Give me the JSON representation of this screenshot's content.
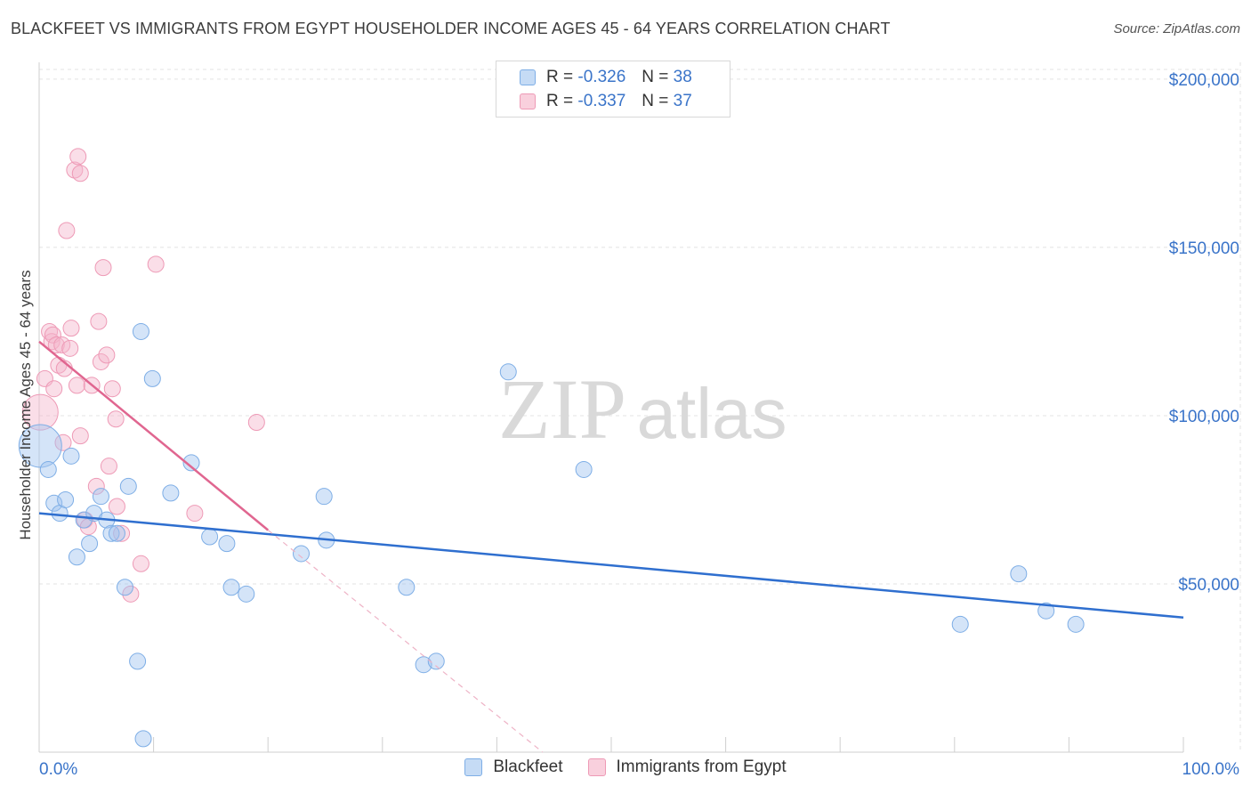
{
  "header": {
    "title": "BLACKFEET VS IMMIGRANTS FROM EGYPT HOUSEHOLDER INCOME AGES 45 - 64 YEARS CORRELATION CHART",
    "source": "Source: ZipAtlas.com"
  },
  "watermark": {
    "zip": "ZIP",
    "atlas": "atlas"
  },
  "legend": {
    "rows": [
      {
        "r_label": "R =",
        "r_value": "-0.326",
        "n_label": "N =",
        "n_value": "38",
        "color": "#a9c8f0"
      },
      {
        "r_label": "R =",
        "r_value": "-0.337",
        "n_label": "N =",
        "n_value": "37",
        "color": "#f5b8cb"
      }
    ]
  },
  "bottom_legend": {
    "items": [
      {
        "label": "Blackfeet",
        "color": "#a9c8f0"
      },
      {
        "label": "Immigrants from Egypt",
        "color": "#f5b8cb"
      }
    ]
  },
  "colors": {
    "blue_line": "#2f6fcf",
    "pink_line": "#e06690",
    "blue_fill": "rgba(160,196,240,0.45)",
    "blue_stroke": "#7eaee6",
    "pink_fill": "rgba(245,182,203,0.45)",
    "pink_stroke": "#ee9ab6",
    "grid": "#e3e3e3",
    "tick_text": "#3a74c9"
  },
  "chart_data": {
    "type": "scatter",
    "title": "BLACKFEET VS IMMIGRANTS FROM EGYPT HOUSEHOLDER INCOME AGES 45 - 64 YEARS CORRELATION CHART",
    "xlabel": "",
    "ylabel": "Householder Income Ages 45 - 64 years",
    "xlim": [
      0,
      100
    ],
    "ylim": [
      0,
      205000
    ],
    "x_tick_labels": [
      "0.0%",
      "100.0%"
    ],
    "y_ticks": [
      50000,
      100000,
      150000,
      200000
    ],
    "y_tick_labels": [
      "$50,000",
      "$100,000",
      "$150,000",
      "$200,000"
    ],
    "grid": true,
    "series": [
      {
        "name": "Blackfeet",
        "r": -0.326,
        "n": 38,
        "trend": {
          "x": [
            0,
            100
          ],
          "y": [
            71000,
            40000
          ]
        },
        "points": [
          {
            "x": 0.1,
            "y": 91000,
            "size": 32
          },
          {
            "x": 0.8,
            "y": 84000
          },
          {
            "x": 1.3,
            "y": 74000
          },
          {
            "x": 1.8,
            "y": 71000
          },
          {
            "x": 2.3,
            "y": 75000
          },
          {
            "x": 2.8,
            "y": 88000
          },
          {
            "x": 3.3,
            "y": 58000
          },
          {
            "x": 3.9,
            "y": 69000
          },
          {
            "x": 4.4,
            "y": 62000
          },
          {
            "x": 4.8,
            "y": 71000
          },
          {
            "x": 5.4,
            "y": 76000
          },
          {
            "x": 5.9,
            "y": 69000
          },
          {
            "x": 6.3,
            "y": 65000
          },
          {
            "x": 6.8,
            "y": 65000
          },
          {
            "x": 7.5,
            "y": 49000
          },
          {
            "x": 7.8,
            "y": 79000
          },
          {
            "x": 8.6,
            "y": 27000
          },
          {
            "x": 8.9,
            "y": 125000
          },
          {
            "x": 9.1,
            "y": 4000
          },
          {
            "x": 9.9,
            "y": 111000
          },
          {
            "x": 11.5,
            "y": 77000
          },
          {
            "x": 13.3,
            "y": 86000
          },
          {
            "x": 14.9,
            "y": 64000
          },
          {
            "x": 16.4,
            "y": 62000
          },
          {
            "x": 16.8,
            "y": 49000
          },
          {
            "x": 18.1,
            "y": 47000
          },
          {
            "x": 22.9,
            "y": 59000
          },
          {
            "x": 24.9,
            "y": 76000
          },
          {
            "x": 25.1,
            "y": 63000
          },
          {
            "x": 32.1,
            "y": 49000
          },
          {
            "x": 33.6,
            "y": 26000
          },
          {
            "x": 34.7,
            "y": 27000
          },
          {
            "x": 41.0,
            "y": 113000
          },
          {
            "x": 47.6,
            "y": 84000
          },
          {
            "x": 80.5,
            "y": 38000
          },
          {
            "x": 85.6,
            "y": 53000
          },
          {
            "x": 88.0,
            "y": 42000
          },
          {
            "x": 90.6,
            "y": 38000
          }
        ]
      },
      {
        "name": "Immigrants from Egypt",
        "r": -0.337,
        "n": 37,
        "trend": {
          "x": [
            0,
            20
          ],
          "y": [
            122000,
            66000
          ]
        },
        "trend_extension": {
          "x": [
            20,
            44
          ],
          "y": [
            66000,
            0
          ]
        },
        "points": [
          {
            "x": 0.1,
            "y": 101000,
            "size": 24
          },
          {
            "x": 0.5,
            "y": 111000
          },
          {
            "x": 0.9,
            "y": 125000
          },
          {
            "x": 1.1,
            "y": 122000
          },
          {
            "x": 1.2,
            "y": 124000
          },
          {
            "x": 1.3,
            "y": 108000
          },
          {
            "x": 1.5,
            "y": 121000
          },
          {
            "x": 1.7,
            "y": 115000
          },
          {
            "x": 2.0,
            "y": 121000
          },
          {
            "x": 2.1,
            "y": 92000
          },
          {
            "x": 2.2,
            "y": 114000
          },
          {
            "x": 2.4,
            "y": 155000
          },
          {
            "x": 2.7,
            "y": 120000
          },
          {
            "x": 2.8,
            "y": 126000
          },
          {
            "x": 3.1,
            "y": 173000
          },
          {
            "x": 3.3,
            "y": 109000
          },
          {
            "x": 3.4,
            "y": 177000
          },
          {
            "x": 3.6,
            "y": 94000
          },
          {
            "x": 3.6,
            "y": 172000
          },
          {
            "x": 4.0,
            "y": 69000
          },
          {
            "x": 4.3,
            "y": 67000
          },
          {
            "x": 4.6,
            "y": 109000
          },
          {
            "x": 5.0,
            "y": 79000
          },
          {
            "x": 5.2,
            "y": 128000
          },
          {
            "x": 5.4,
            "y": 116000
          },
          {
            "x": 5.6,
            "y": 144000
          },
          {
            "x": 5.9,
            "y": 118000
          },
          {
            "x": 6.1,
            "y": 85000
          },
          {
            "x": 6.4,
            "y": 108000
          },
          {
            "x": 6.7,
            "y": 99000
          },
          {
            "x": 6.8,
            "y": 73000
          },
          {
            "x": 7.2,
            "y": 65000
          },
          {
            "x": 8.0,
            "y": 47000
          },
          {
            "x": 8.9,
            "y": 56000
          },
          {
            "x": 10.2,
            "y": 145000
          },
          {
            "x": 13.6,
            "y": 71000
          },
          {
            "x": 19.0,
            "y": 98000
          }
        ]
      }
    ]
  }
}
